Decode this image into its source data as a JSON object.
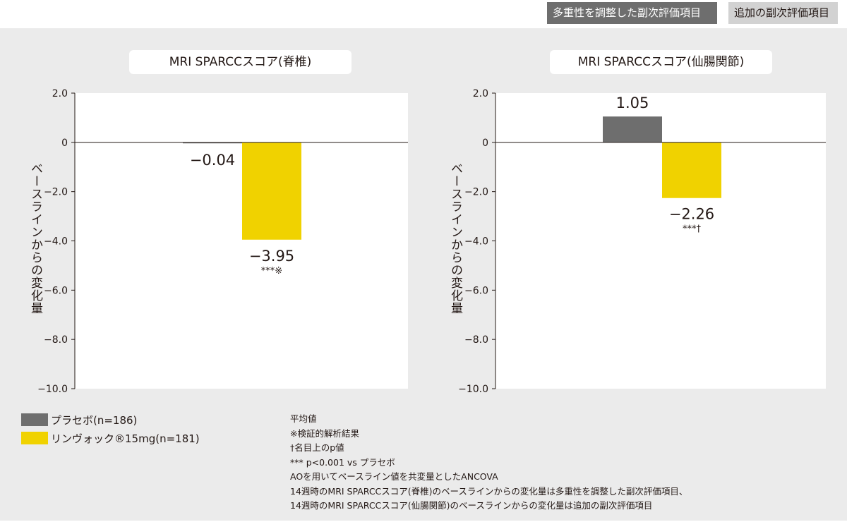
{
  "header": {
    "tag_primary": "多重性を調整した副次評価項目",
    "tag_secondary": "追加の副次評価項目"
  },
  "colors": {
    "placebo": "#6e6e6e",
    "drug": "#f0d200",
    "panel_bg": "#ebebeb",
    "plot_bg": "#ffffff"
  },
  "chart_data": [
    {
      "type": "bar",
      "title": "MRI SPARCCスコア(脊椎)",
      "ylabel": "ベースラインからの変化量",
      "ylim": [
        -10.0,
        2.0
      ],
      "yticks": [
        "2.0",
        "0",
        "−2.0",
        "−4.0",
        "−6.0",
        "−8.0",
        "−10.0"
      ],
      "ytick_values": [
        2.0,
        0,
        -2.0,
        -4.0,
        -6.0,
        -8.0,
        -10.0
      ],
      "series": [
        {
          "name": "プラセボ(n=186)",
          "value": -0.04,
          "label": "−0.04",
          "annotation": ""
        },
        {
          "name": "リンヴォック®15mg(n=181)",
          "value": -3.95,
          "label": "−3.95",
          "annotation": "***※"
        }
      ]
    },
    {
      "type": "bar",
      "title": "MRI SPARCCスコア(仙腸関節)",
      "ylabel": "ベースラインからの変化量",
      "ylim": [
        -10.0,
        2.0
      ],
      "yticks": [
        "2.0",
        "0",
        "−2.0",
        "−4.0",
        "−6.0",
        "−8.0",
        "−10.0"
      ],
      "ytick_values": [
        2.0,
        0,
        -2.0,
        -4.0,
        -6.0,
        -8.0,
        -10.0
      ],
      "series": [
        {
          "name": "プラセボ(n=186)",
          "value": 1.05,
          "label": "1.05",
          "annotation": ""
        },
        {
          "name": "リンヴォック®15mg(n=181)",
          "value": -2.26,
          "label": "−2.26",
          "annotation": "***†"
        }
      ]
    }
  ],
  "legend": {
    "placebo": "プラセボ(n=186)",
    "drug": "リンヴォック®15mg(n=181)"
  },
  "notes": [
    "平均値",
    "※検証的解析結果",
    "†名目上のp値",
    "*** p<0.001 vs プラセボ",
    "AOを用いてベースライン値を共変量としたANCOVA",
    "14週時のMRI SPARCCスコア(脊椎)のベースラインからの変化量は多重性を調整した副次評価項目、",
    "14週時のMRI SPARCCスコア(仙腸関節)のベースラインからの変化量は追加の副次評価項目"
  ]
}
